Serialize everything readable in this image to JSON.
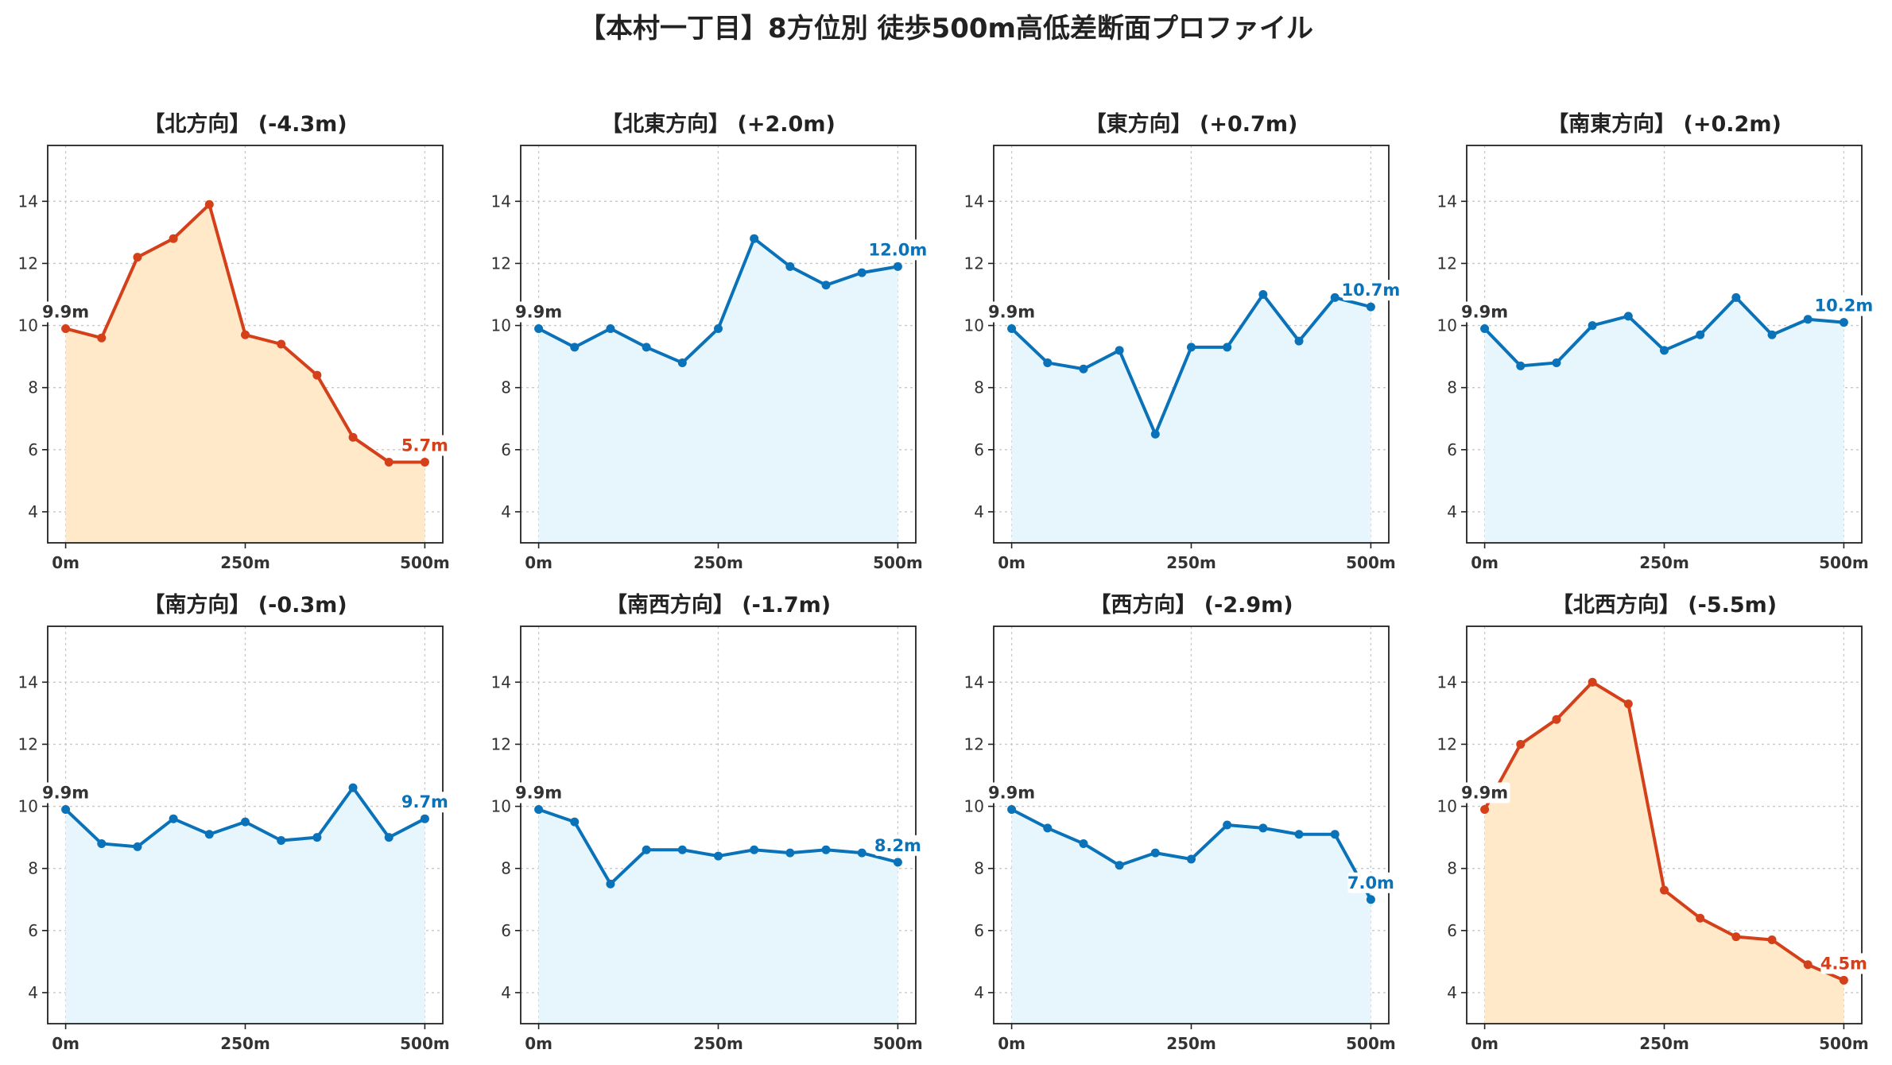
{
  "title": "【本村一丁目】8方位別 徒歩500m高低差断面プロファイル",
  "colors": {
    "rise": "#0a72b8",
    "rise_fill": "#e6f6fc",
    "fall": "#d4401a",
    "fall_fill": "#ffe9c8",
    "start_label": "#333333"
  },
  "chart_data": [
    {
      "type": "area",
      "title": "【北方向】 (-4.3m)",
      "trend": "fall",
      "x": [
        0,
        50,
        100,
        150,
        200,
        250,
        300,
        350,
        400,
        450,
        500
      ],
      "y": [
        9.9,
        9.6,
        12.2,
        12.8,
        13.9,
        9.7,
        9.4,
        8.4,
        6.4,
        5.6,
        5.6
      ],
      "start_label": "9.9m",
      "end_label": "5.7m",
      "xticks": [
        "0m",
        "250m",
        "500m"
      ],
      "yticks": [
        4,
        6,
        8,
        10,
        12,
        14
      ],
      "xlim": [
        -25,
        525
      ],
      "ylim": [
        3,
        15.8
      ],
      "grid": true
    },
    {
      "type": "area",
      "title": "【北東方向】 (+2.0m)",
      "trend": "rise",
      "x": [
        0,
        50,
        100,
        150,
        200,
        250,
        300,
        350,
        400,
        450,
        500
      ],
      "y": [
        9.9,
        9.3,
        9.9,
        9.3,
        8.8,
        9.9,
        12.8,
        11.9,
        11.3,
        11.7,
        11.9
      ],
      "start_label": "9.9m",
      "end_label": "12.0m",
      "xticks": [
        "0m",
        "250m",
        "500m"
      ],
      "yticks": [
        4,
        6,
        8,
        10,
        12,
        14
      ],
      "xlim": [
        -25,
        525
      ],
      "ylim": [
        3,
        15.8
      ],
      "grid": true
    },
    {
      "type": "area",
      "title": "【東方向】 (+0.7m)",
      "trend": "rise",
      "x": [
        0,
        50,
        100,
        150,
        200,
        250,
        300,
        350,
        400,
        450,
        500
      ],
      "y": [
        9.9,
        8.8,
        8.6,
        9.2,
        6.5,
        9.3,
        9.3,
        11.0,
        9.5,
        10.9,
        10.6
      ],
      "start_label": "9.9m",
      "end_label": "10.7m",
      "xticks": [
        "0m",
        "250m",
        "500m"
      ],
      "yticks": [
        4,
        6,
        8,
        10,
        12,
        14
      ],
      "xlim": [
        -25,
        525
      ],
      "ylim": [
        3,
        15.8
      ],
      "grid": true
    },
    {
      "type": "area",
      "title": "【南東方向】 (+0.2m)",
      "trend": "rise",
      "x": [
        0,
        50,
        100,
        150,
        200,
        250,
        300,
        350,
        400,
        450,
        500
      ],
      "y": [
        9.9,
        8.7,
        8.8,
        10.0,
        10.3,
        9.2,
        9.7,
        10.9,
        9.7,
        10.2,
        10.1
      ],
      "start_label": "9.9m",
      "end_label": "10.2m",
      "xticks": [
        "0m",
        "250m",
        "500m"
      ],
      "yticks": [
        4,
        6,
        8,
        10,
        12,
        14
      ],
      "xlim": [
        -25,
        525
      ],
      "ylim": [
        3,
        15.8
      ],
      "grid": true
    },
    {
      "type": "area",
      "title": "【南方向】 (-0.3m)",
      "trend": "rise",
      "x": [
        0,
        50,
        100,
        150,
        200,
        250,
        300,
        350,
        400,
        450,
        500
      ],
      "y": [
        9.9,
        8.8,
        8.7,
        9.6,
        9.1,
        9.5,
        8.9,
        9.0,
        10.6,
        9.0,
        9.6
      ],
      "start_label": "9.9m",
      "end_label": "9.7m",
      "xticks": [
        "0m",
        "250m",
        "500m"
      ],
      "yticks": [
        4,
        6,
        8,
        10,
        12,
        14
      ],
      "xlim": [
        -25,
        525
      ],
      "ylim": [
        3,
        15.8
      ],
      "grid": true
    },
    {
      "type": "area",
      "title": "【南西方向】 (-1.7m)",
      "trend": "rise",
      "x": [
        0,
        50,
        100,
        150,
        200,
        250,
        300,
        350,
        400,
        450,
        500
      ],
      "y": [
        9.9,
        9.5,
        7.5,
        8.6,
        8.6,
        8.4,
        8.6,
        8.5,
        8.6,
        8.5,
        8.2
      ],
      "start_label": "9.9m",
      "end_label": "8.2m",
      "xticks": [
        "0m",
        "250m",
        "500m"
      ],
      "yticks": [
        4,
        6,
        8,
        10,
        12,
        14
      ],
      "xlim": [
        -25,
        525
      ],
      "ylim": [
        3,
        15.8
      ],
      "grid": true
    },
    {
      "type": "area",
      "title": "【西方向】 (-2.9m)",
      "trend": "rise",
      "x": [
        0,
        50,
        100,
        150,
        200,
        250,
        300,
        350,
        400,
        450,
        500
      ],
      "y": [
        9.9,
        9.3,
        8.8,
        8.1,
        8.5,
        8.3,
        9.4,
        9.3,
        9.1,
        9.1,
        7.0
      ],
      "start_label": "9.9m",
      "end_label": "7.0m",
      "xticks": [
        "0m",
        "250m",
        "500m"
      ],
      "yticks": [
        4,
        6,
        8,
        10,
        12,
        14
      ],
      "xlim": [
        -25,
        525
      ],
      "ylim": [
        3,
        15.8
      ],
      "grid": true
    },
    {
      "type": "area",
      "title": "【北西方向】 (-5.5m)",
      "trend": "fall",
      "x": [
        0,
        50,
        100,
        150,
        200,
        250,
        300,
        350,
        400,
        450,
        500
      ],
      "y": [
        9.9,
        12.0,
        12.8,
        14.0,
        13.3,
        7.3,
        6.4,
        5.8,
        5.7,
        4.9,
        4.4
      ],
      "start_label": "9.9m",
      "end_label": "4.5m",
      "xticks": [
        "0m",
        "250m",
        "500m"
      ],
      "yticks": [
        4,
        6,
        8,
        10,
        12,
        14
      ],
      "xlim": [
        -25,
        525
      ],
      "ylim": [
        3,
        15.8
      ],
      "grid": true
    }
  ]
}
